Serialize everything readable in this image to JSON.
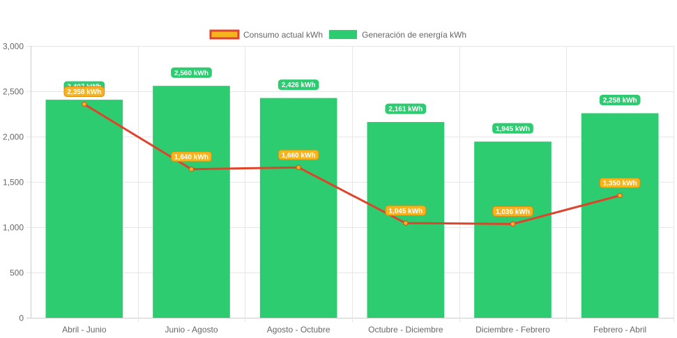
{
  "chart_data": {
    "type": "bar",
    "categories": [
      "Abril - Junio",
      "Junio - Agosto",
      "Agosto - Octubre",
      "Octubre - Diciembre",
      "Diciembre - Febrero",
      "Febrero - Abril"
    ],
    "series": [
      {
        "name": "Consumo actual kWh",
        "type": "line",
        "values": [
          2358,
          1640,
          1660,
          1045,
          1036,
          1350
        ],
        "labels": [
          "2,358 kWh",
          "1,640 kWh",
          "1,660 kWh",
          "1,045 kWh",
          "1,036 kWh",
          "1,350 kWh"
        ],
        "color": "#e0432b",
        "fill": "#f5b31d"
      },
      {
        "name": "Generación de energía kWh",
        "type": "bar",
        "values": [
          2407,
          2560,
          2426,
          2161,
          1945,
          2258
        ],
        "labels": [
          "2,407 kWh",
          "2,560 kWh",
          "2,426 kWh",
          "2,161 kWh",
          "1,945 kWh",
          "2,258 kWh"
        ],
        "color": "#2ecc71"
      }
    ],
    "yticks": [
      "0",
      "500",
      "1,000",
      "1,500",
      "2,000",
      "2,500",
      "3,000"
    ],
    "ylim": [
      0,
      3000
    ],
    "grid": true,
    "legend_position": "top-center",
    "title": "",
    "xlabel": "",
    "ylabel": ""
  }
}
